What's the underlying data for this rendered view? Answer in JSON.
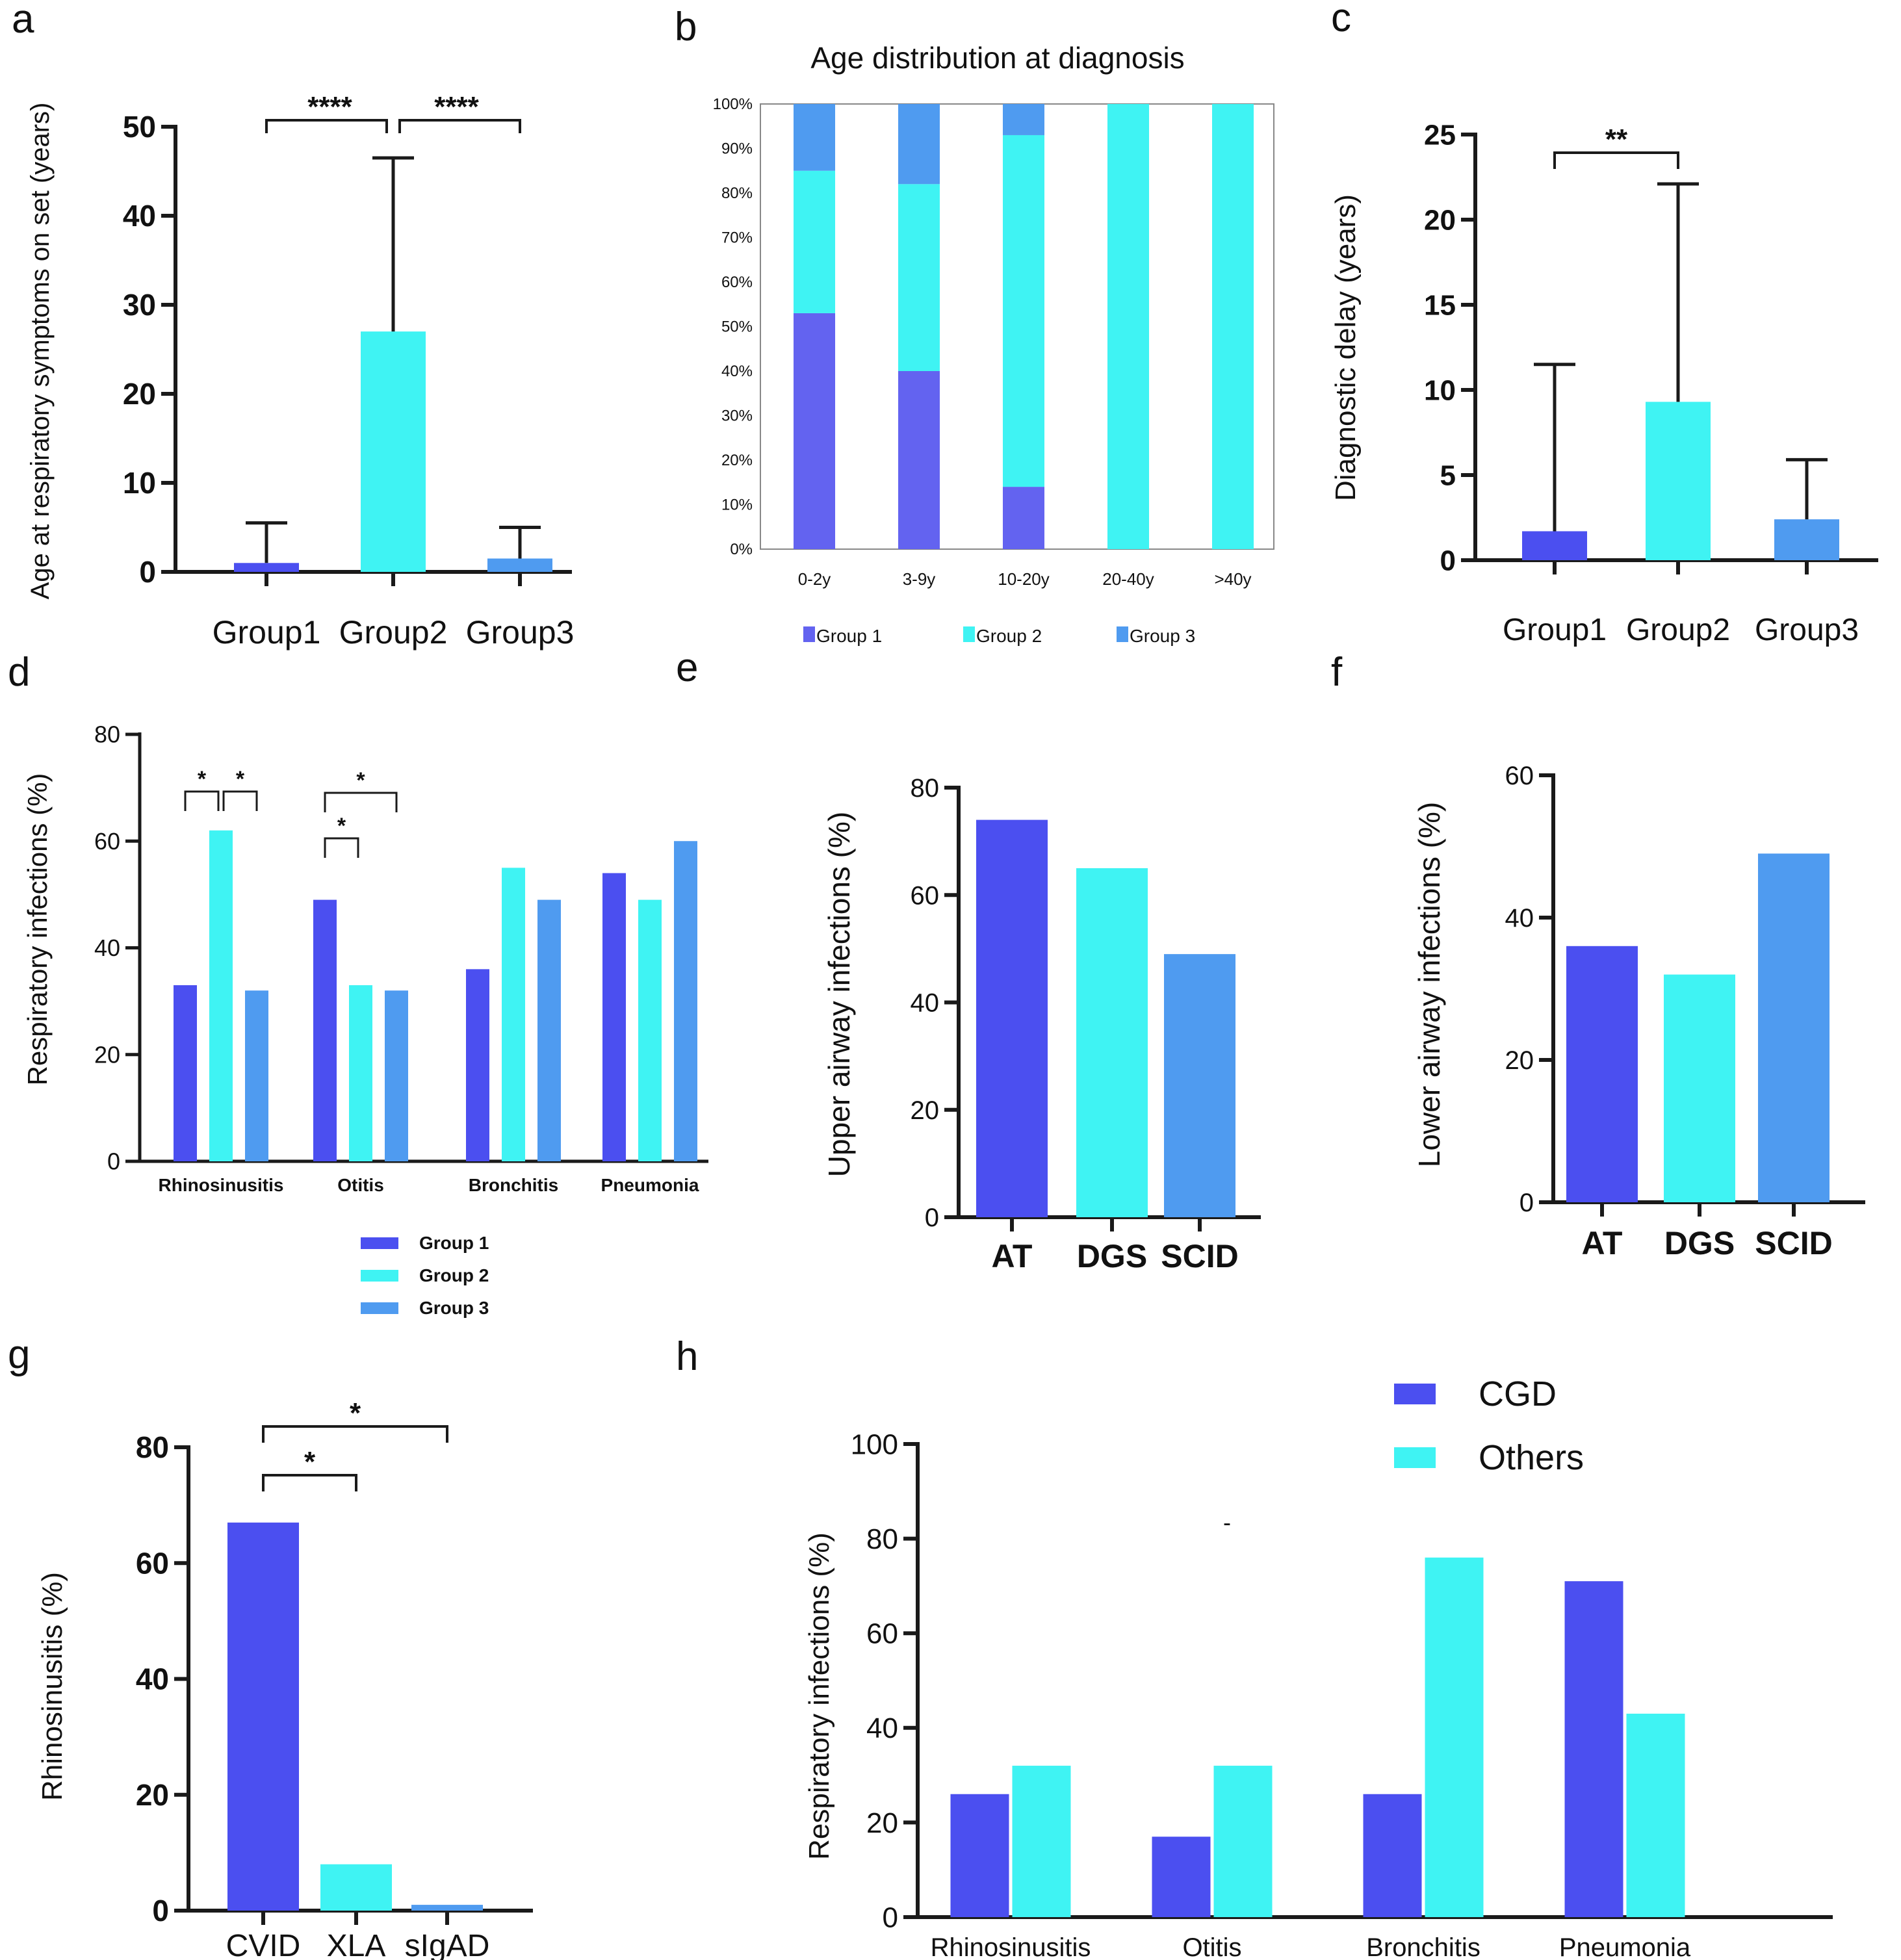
{
  "colors": {
    "c1": "#4b4ff0",
    "c2": "#3ff3f3",
    "c3": "#4f9bf0",
    "axis": "#1a1a1a",
    "text": "#111111"
  },
  "chart_data": [
    {
      "panel": "a",
      "type": "bar",
      "categories": [
        "Group1",
        "Group2",
        "Group3"
      ],
      "values": [
        1,
        27,
        1.5
      ],
      "error_upper": [
        5.5,
        46.5,
        5
      ],
      "ylabel": "Age at respiratory symptoms on set (years)",
      "ylim": [
        0,
        50
      ],
      "yticks": [
        0,
        10,
        20,
        30,
        40,
        50
      ],
      "significance": [
        {
          "from": 0,
          "to": 1,
          "label": "****"
        },
        {
          "from": 1,
          "to": 2,
          "label": "****"
        }
      ]
    },
    {
      "panel": "b",
      "type": "bar",
      "stacked": true,
      "title": "Age distribution at diagnosis",
      "categories": [
        "0-2y",
        "3-9y",
        "10-20y",
        "20-40y",
        ">40y"
      ],
      "series": [
        {
          "name": "Group 1",
          "values": [
            53,
            40,
            14,
            0,
            0
          ]
        },
        {
          "name": "Group 2",
          "values": [
            32,
            42,
            79,
            100,
            100
          ]
        },
        {
          "name": "Group 3",
          "values": [
            15,
            18,
            7,
            0,
            0
          ]
        }
      ],
      "yticks": [
        "0%",
        "10%",
        "20%",
        "30%",
        "40%",
        "50%",
        "60%",
        "70%",
        "80%",
        "90%",
        "100%"
      ],
      "ylim": [
        0,
        100
      ]
    },
    {
      "panel": "c",
      "type": "bar",
      "categories": [
        "Group1",
        "Group2",
        "Group3"
      ],
      "values": [
        1.7,
        9.3,
        2.4
      ],
      "error_upper": [
        11.5,
        22.1,
        5.9
      ],
      "ylabel": "Diagnostic delay (years)",
      "ylim": [
        0,
        25
      ],
      "yticks": [
        0,
        5,
        10,
        15,
        20,
        25
      ],
      "significance": [
        {
          "from": 0,
          "to": 1,
          "label": "**"
        }
      ]
    },
    {
      "panel": "d",
      "type": "bar",
      "categories": [
        "Rhinosinusitis",
        "Otitis",
        "Bronchitis",
        "Pneumonia"
      ],
      "series": [
        {
          "name": "Group 1",
          "values": [
            33,
            49,
            36,
            54
          ]
        },
        {
          "name": "Group 2",
          "values": [
            62,
            33,
            55,
            49
          ]
        },
        {
          "name": "Group 3",
          "values": [
            32,
            32,
            49,
            60
          ]
        }
      ],
      "ylabel": "Respiratory infections (%)",
      "ylim": [
        0,
        80
      ],
      "yticks": [
        0,
        20,
        40,
        60,
        80
      ],
      "significance": [
        {
          "label": "*",
          "cat": 0,
          "from": 0,
          "to": 1,
          "level": 0
        },
        {
          "label": "*",
          "cat": 0,
          "from": 1,
          "to": 2,
          "level": 0
        },
        {
          "label": "*",
          "cat": 1,
          "from": 0,
          "to": 2,
          "level": 1
        },
        {
          "label": "*",
          "cat": 1,
          "from": 0,
          "to": 1,
          "level": 0
        }
      ]
    },
    {
      "panel": "e",
      "type": "bar",
      "categories": [
        "AT",
        "DGS",
        "SCID"
      ],
      "values": [
        74,
        65,
        49
      ],
      "ylabel": "Upper airway infections (%)",
      "ylim": [
        0,
        80
      ],
      "yticks": [
        0,
        20,
        40,
        60,
        80
      ]
    },
    {
      "panel": "f",
      "type": "bar",
      "categories": [
        "AT",
        "DGS",
        "SCID"
      ],
      "values": [
        36,
        32,
        49
      ],
      "ylabel": "Lower airway infections (%)",
      "ylim": [
        0,
        60
      ],
      "yticks": [
        0,
        20,
        40,
        60
      ]
    },
    {
      "panel": "g",
      "type": "bar",
      "categories": [
        "CVID",
        "XLA",
        "sIgAD"
      ],
      "values": [
        67,
        8,
        1
      ],
      "ylabel": "Rhinosinusitis (%)",
      "ylim": [
        0,
        80
      ],
      "yticks": [
        0,
        20,
        40,
        60,
        80
      ],
      "significance": [
        {
          "from": 0,
          "to": 1,
          "label": "*"
        },
        {
          "from": 0,
          "to": 2,
          "label": "*"
        }
      ]
    },
    {
      "panel": "h",
      "type": "bar",
      "categories": [
        "Rhinosinusitis",
        "Otitis",
        "Bronchitis",
        "Pneumonia"
      ],
      "series": [
        {
          "name": "CGD",
          "values": [
            26,
            17,
            26,
            71
          ]
        },
        {
          "name": "Others",
          "values": [
            32,
            32,
            76,
            43
          ]
        }
      ],
      "ylabel": "Respiratory infections (%)",
      "ylim": [
        0,
        100
      ],
      "yticks": [
        0,
        20,
        40,
        60,
        80,
        100
      ],
      "annotation": "-"
    }
  ]
}
